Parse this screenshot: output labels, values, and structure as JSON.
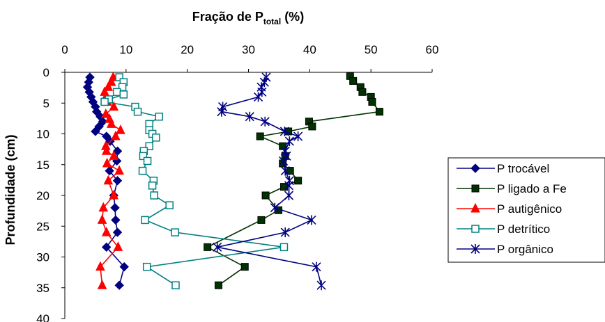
{
  "chart_data": {
    "type": "line",
    "title_main": "Fração de P",
    "title_sub": "total",
    "title_tail": " (%)",
    "ylabel": "Profundidade (cm)",
    "xlim": [
      0,
      60
    ],
    "ylim": [
      0,
      40
    ],
    "y_inverted": true,
    "x_axis_position": "top",
    "x_ticks": [
      "0",
      "10",
      "20",
      "30",
      "40",
      "50",
      "60"
    ],
    "y_ticks": [
      "0",
      "5",
      "10",
      "15",
      "20",
      "25",
      "30",
      "35",
      "40"
    ],
    "legend_position": "right",
    "grid": false,
    "series": [
      {
        "name": "P trocável",
        "color": "#000080",
        "marker": "diamond",
        "points": [
          [
            4.1,
            0.8
          ],
          [
            3.9,
            1.6
          ],
          [
            3.7,
            2.4
          ],
          [
            4.0,
            3.2
          ],
          [
            4.3,
            4.0
          ],
          [
            4.6,
            4.8
          ],
          [
            5.0,
            5.6
          ],
          [
            5.2,
            6.4
          ],
          [
            5.8,
            7.2
          ],
          [
            6.2,
            8.0
          ],
          [
            5.6,
            8.8
          ],
          [
            5.0,
            9.6
          ],
          [
            6.8,
            10.4
          ],
          [
            7.4,
            11.2
          ],
          [
            8.6,
            12.8
          ],
          [
            8.5,
            14.4
          ],
          [
            7.3,
            16.0
          ],
          [
            8.6,
            17.6
          ],
          [
            8.0,
            20.0
          ],
          [
            8.2,
            22.0
          ],
          [
            8.3,
            24.0
          ],
          [
            8.6,
            26.0
          ],
          [
            6.8,
            28.4
          ],
          [
            9.7,
            31.6
          ],
          [
            8.9,
            34.6
          ]
        ]
      },
      {
        "name": "P ligado a Fe",
        "color": "#003300",
        "marker": "square",
        "points": [
          [
            46.6,
            0.6
          ],
          [
            47.1,
            1.4
          ],
          [
            48.3,
            2.4
          ],
          [
            48.6,
            3.2
          ],
          [
            50.0,
            4.0
          ],
          [
            50.2,
            4.8
          ],
          [
            51.4,
            6.4
          ],
          [
            39.9,
            8.0
          ],
          [
            40.4,
            8.8
          ],
          [
            36.5,
            9.6
          ],
          [
            31.9,
            10.4
          ],
          [
            35.6,
            12.0
          ],
          [
            36.0,
            13.6
          ],
          [
            35.6,
            14.8
          ],
          [
            36.8,
            16.0
          ],
          [
            38.1,
            17.6
          ],
          [
            35.8,
            18.6
          ],
          [
            32.8,
            20.0
          ],
          [
            34.9,
            22.4
          ],
          [
            32.1,
            24.0
          ],
          [
            23.3,
            28.4
          ],
          [
            29.4,
            31.6
          ],
          [
            25.1,
            34.6
          ]
        ]
      },
      {
        "name": "P autigênico",
        "color": "#ff0000",
        "marker": "triangle",
        "points": [
          [
            7.9,
            0.8
          ],
          [
            7.6,
            1.6
          ],
          [
            7.1,
            2.4
          ],
          [
            6.5,
            3.2
          ],
          [
            6.7,
            4.0
          ],
          [
            6.9,
            4.8
          ],
          [
            8.0,
            5.6
          ],
          [
            6.7,
            6.8
          ],
          [
            7.3,
            7.6
          ],
          [
            7.6,
            8.4
          ],
          [
            9.1,
            9.4
          ],
          [
            8.3,
            10.4
          ],
          [
            6.7,
            12.0
          ],
          [
            6.8,
            12.8
          ],
          [
            8.0,
            13.6
          ],
          [
            6.9,
            14.8
          ],
          [
            8.9,
            16.0
          ],
          [
            7.1,
            17.6
          ],
          [
            8.0,
            20.0
          ],
          [
            6.3,
            22.0
          ],
          [
            6.1,
            24.0
          ],
          [
            6.8,
            26.0
          ],
          [
            8.7,
            28.4
          ],
          [
            5.8,
            31.6
          ],
          [
            6.1,
            34.6
          ]
        ]
      },
      {
        "name": "P detrítico",
        "color": "#008080",
        "marker": "open-square",
        "points": [
          [
            8.9,
            0.8
          ],
          [
            9.6,
            1.6
          ],
          [
            9.4,
            2.4
          ],
          [
            8.5,
            3.2
          ],
          [
            9.6,
            3.6
          ],
          [
            7.2,
            4.4
          ],
          [
            6.5,
            4.8
          ],
          [
            11.5,
            5.6
          ],
          [
            11.9,
            6.4
          ],
          [
            15.4,
            7.2
          ],
          [
            13.8,
            8.4
          ],
          [
            13.8,
            9.4
          ],
          [
            14.3,
            10.0
          ],
          [
            14.9,
            10.6
          ],
          [
            13.8,
            12.0
          ],
          [
            12.9,
            12.8
          ],
          [
            12.8,
            13.6
          ],
          [
            13.5,
            14.4
          ],
          [
            12.7,
            16.0
          ],
          [
            14.5,
            17.6
          ],
          [
            14.3,
            18.4
          ],
          [
            14.6,
            20.0
          ],
          [
            17.1,
            21.6
          ],
          [
            13.1,
            24.0
          ],
          [
            18.0,
            26.0
          ],
          [
            35.8,
            28.4
          ],
          [
            13.4,
            31.6
          ],
          [
            18.1,
            34.6
          ]
        ]
      },
      {
        "name": "P orgânico",
        "color": "#000080",
        "marker": "asterisk",
        "points": [
          [
            32.9,
            0.8
          ],
          [
            32.6,
            1.6
          ],
          [
            32.1,
            2.4
          ],
          [
            32.2,
            3.2
          ],
          [
            31.6,
            4.0
          ],
          [
            25.8,
            5.6
          ],
          [
            25.6,
            6.4
          ],
          [
            30.2,
            7.2
          ],
          [
            32.7,
            8.0
          ],
          [
            35.9,
            9.6
          ],
          [
            38.1,
            10.4
          ],
          [
            36.7,
            11.2
          ],
          [
            36.0,
            12.8
          ],
          [
            36.2,
            13.6
          ],
          [
            35.7,
            14.4
          ],
          [
            36.0,
            16.0
          ],
          [
            36.7,
            17.6
          ],
          [
            36.6,
            18.4
          ],
          [
            36.6,
            20.0
          ],
          [
            34.3,
            22.0
          ],
          [
            40.3,
            24.0
          ],
          [
            36.0,
            26.0
          ],
          [
            24.9,
            28.4
          ],
          [
            41.1,
            31.6
          ],
          [
            41.9,
            34.6
          ]
        ]
      }
    ]
  }
}
